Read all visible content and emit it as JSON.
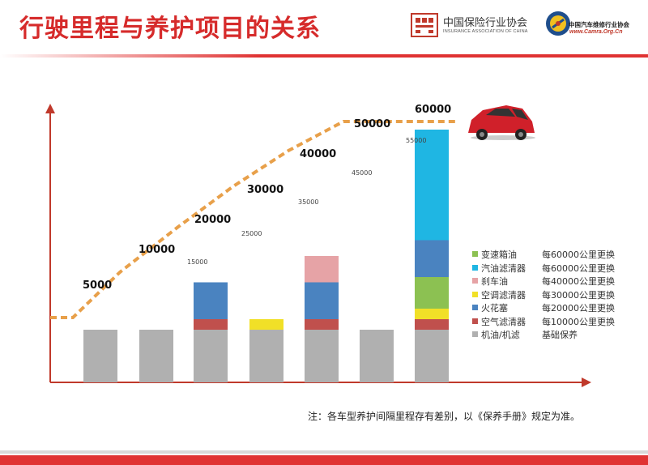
{
  "header": {
    "title": "行驶里程与养护项目的关系",
    "logo_iac_cn": "中国保险行业协会",
    "logo_iac_en": "INSURANCE ASSOCIATION OF CHINA",
    "logo_cam_cn": "中国汽车维修行业协会",
    "logo_cam_url": "www.Camra.Org.Cn"
  },
  "footnote": "注：各车型养护间隔里程存有差别，以《保养手册》规定为准。",
  "colors": {
    "accent": "#e03333",
    "axis": "#c0392b",
    "milestone_line": "#e8a04a"
  },
  "legend": [
    {
      "name": "变速箱油",
      "interval": "每60000公里更换",
      "color": "#8cc152"
    },
    {
      "name": "汽油滤清器",
      "interval": "每60000公里更换",
      "color": "#1fb6e3"
    },
    {
      "name": "刹车油",
      "interval": "每40000公里更换",
      "color": "#e6a3a6"
    },
    {
      "name": "空调滤清器",
      "interval": "每30000公里更换",
      "color": "#f1e027"
    },
    {
      "name": "火花塞",
      "interval": "每20000公里更换",
      "color": "#4a83c0"
    },
    {
      "name": "空气滤清器",
      "interval": "每10000公里更换",
      "color": "#c0504d"
    },
    {
      "name": "机油/机滤",
      "interval": "基础保养",
      "color": "#b0b0b0"
    }
  ],
  "chart_data": {
    "type": "bar",
    "stacked": true,
    "categories": [
      "5000",
      "10000",
      "20000",
      "30000",
      "40000",
      "50000",
      "60000"
    ],
    "series": [
      {
        "name": "机油/机滤",
        "values": [
          1,
          1,
          1,
          1,
          1,
          1,
          1
        ]
      },
      {
        "name": "空气滤清器",
        "values": [
          0,
          0,
          0.2,
          0,
          0.2,
          0,
          0.2
        ]
      },
      {
        "name": "空调滤清器",
        "values": [
          0,
          0,
          0,
          0.2,
          0,
          0,
          0.2
        ]
      },
      {
        "name": "火花塞",
        "values": [
          0,
          0,
          0.7,
          0,
          0.7,
          0,
          0.7
        ]
      },
      {
        "name": "刹车油",
        "values": [
          0,
          0,
          0,
          0,
          0.5,
          0,
          0
        ]
      },
      {
        "name": "汽油滤清器",
        "values": [
          0,
          0,
          0,
          0,
          0,
          0,
          2.1
        ]
      },
      {
        "name": "变速箱油",
        "values": [
          0,
          0,
          0,
          0,
          0,
          0,
          0.6
        ]
      }
    ],
    "stack_order_for_60000": [
      "机油/机滤",
      "空气滤清器",
      "空调滤清器",
      "变速箱油",
      "火花塞",
      "汽油滤清器"
    ],
    "milestone_labels": [
      "5000",
      "10000",
      "20000",
      "30000",
      "40000",
      "50000",
      "60000"
    ],
    "intermediate_labels": [
      "15000",
      "25000",
      "35000",
      "45000",
      "55000"
    ],
    "title": "行驶里程与养护项目的关系",
    "xlabel": "",
    "ylabel": ""
  }
}
